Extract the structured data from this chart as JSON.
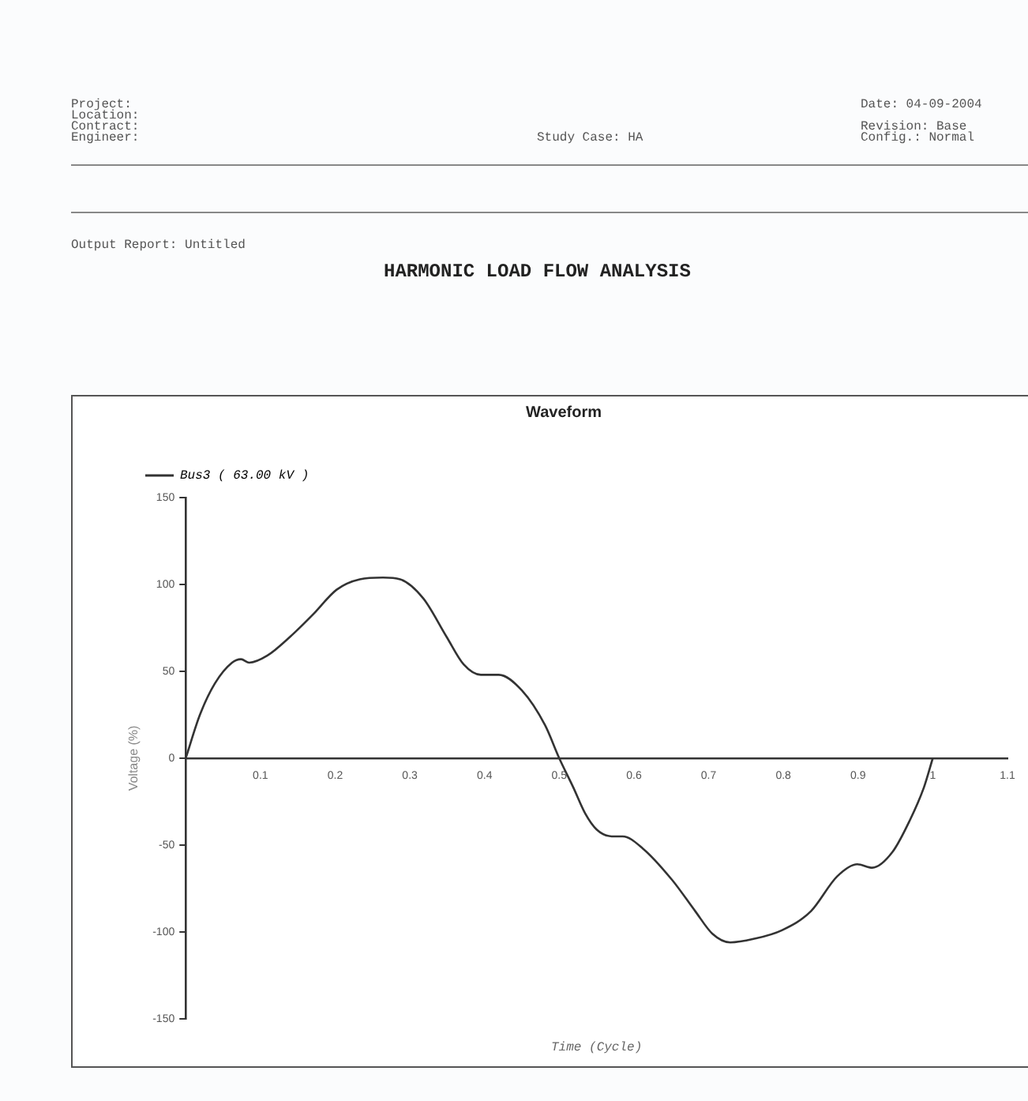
{
  "chart_data": {
    "type": "line",
    "title": "Waveform",
    "xlabel": "Time (Cycle)",
    "ylabel": "Voltage (%)",
    "annotations": [
      "Project:",
      "Location:",
      "Contract:",
      "Engineer:",
      "Study Case: HA",
      "Date: 04-09-2004",
      "Revision: Base",
      "Config.: Normal",
      "Output Report: Untitled",
      "HARMONIC LOAD FLOW ANALYSIS"
    ],
    "series": [
      {
        "name": "Bus3 ( 63.00 kV )",
        "color": "#333333",
        "x": [
          0,
          0.019,
          0.039,
          0.062,
          0.074,
          0.085,
          0.109,
          0.14,
          0.171,
          0.202,
          0.233,
          0.264,
          0.287,
          0.318,
          0.349,
          0.372,
          0.395,
          0.419,
          0.45,
          0.481,
          0.5,
          0.519,
          0.535,
          0.55,
          0.57,
          0.585,
          0.612,
          0.651,
          0.682,
          0.705,
          0.729,
          0.76,
          0.798,
          0.837,
          0.872,
          0.899,
          0.919,
          0.946,
          0.969,
          0.988,
          1.0
        ],
        "values": [
          0,
          25,
          43,
          55,
          57,
          55,
          59,
          70,
          83,
          97,
          103,
          104,
          103,
          92,
          70,
          54,
          48,
          48,
          39,
          19,
          0,
          -17,
          -32,
          -41,
          -45,
          -45,
          -52,
          -70,
          -88,
          -101,
          -106,
          -104,
          -99,
          -88,
          -68,
          -61,
          -63,
          -54,
          -36,
          -17,
          0
        ]
      }
    ],
    "xlim": [
      0,
      1.1
    ],
    "xticks": [
      {
        "value": 0,
        "label": null
      },
      0.1,
      0.2,
      0.3,
      0.4,
      0.5,
      0.6,
      0.7,
      0.8,
      0.9,
      1.0,
      1.1
    ],
    "ylim": [
      -150,
      150
    ],
    "yticks": [
      -150,
      -100,
      -50,
      0,
      50,
      100,
      150
    ],
    "grid": false,
    "legend": "top left",
    "marker": "none",
    "line_style": "solid"
  }
}
